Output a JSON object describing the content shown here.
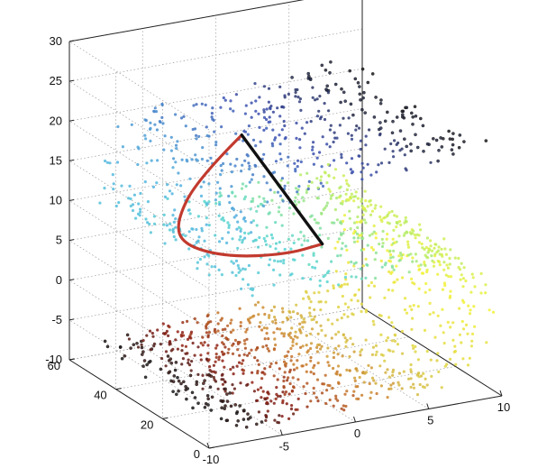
{
  "chart_data": {
    "type": "scatter",
    "title": "",
    "xlabel": "",
    "ylabel": "",
    "zlabel": "",
    "x_ticks": [
      "-10",
      "-5",
      "0",
      "5",
      "10"
    ],
    "y_ticks": [
      "0",
      "20",
      "40",
      "60"
    ],
    "z_ticks": [
      "-10",
      "-5",
      "0",
      "5",
      "10",
      "15",
      "20",
      "25",
      "30"
    ],
    "xlim": [
      -10,
      10
    ],
    "ylim": [
      0,
      60
    ],
    "zlim": [
      -10,
      30
    ],
    "grid": true,
    "colormap": [
      "#1b1b1b",
      "#8c1e14",
      "#c8782a",
      "#d9c84a",
      "#f2f23a",
      "#b5ec6a",
      "#59d6cf",
      "#55b4e0",
      "#3c50b0",
      "#1b1b1b"
    ],
    "manifold": "swiss-roll",
    "point_count": 1800,
    "geodesic_path": {
      "name": "",
      "color": "#c23a2e",
      "points": [
        [
          -3.0,
          30,
          21.5
        ],
        [
          -6.0,
          30,
          17.0
        ],
        [
          -7.5,
          30,
          12.0
        ],
        [
          -7.0,
          30,
          9.0
        ],
        [
          -4.0,
          30,
          6.5
        ],
        [
          0.0,
          30,
          5.5
        ],
        [
          2.5,
          30,
          6.0
        ]
      ]
    },
    "euclidean_path": {
      "name": "",
      "color": "#111111",
      "points": [
        [
          -3.0,
          30,
          21.5
        ],
        [
          2.5,
          30,
          6.0
        ]
      ]
    }
  }
}
